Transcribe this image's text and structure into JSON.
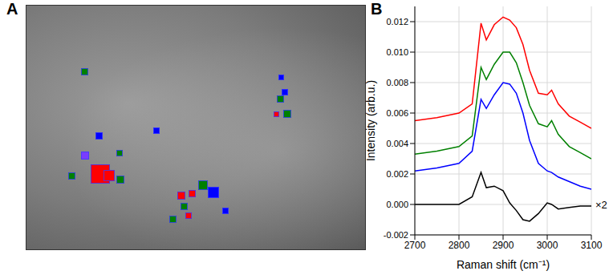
{
  "panel_labels": [
    "A",
    "B"
  ],
  "chart_data": {
    "type": "line",
    "xlabel": "Raman shift (cm⁻¹)",
    "ylabel": "Intensity (arb.u.)",
    "annotations": [
      {
        "text": "×2",
        "x": 3100,
        "y": 0
      }
    ],
    "x": [
      2700,
      2750,
      2800,
      2830,
      2850,
      2862,
      2880,
      2900,
      2915,
      2930,
      2945,
      2960,
      2980,
      3000,
      3010,
      3025,
      3050,
      3075,
      3100
    ],
    "series": [
      {
        "color": "red",
        "values": [
          0.0055,
          0.0057,
          0.006,
          0.0066,
          0.0119,
          0.0108,
          0.0118,
          0.0123,
          0.0121,
          0.0116,
          0.0105,
          0.0088,
          0.0073,
          0.0072,
          0.0075,
          0.0066,
          0.0058,
          0.0054,
          0.005
        ]
      },
      {
        "color": "green",
        "values": [
          0.0033,
          0.0035,
          0.0038,
          0.0045,
          0.009,
          0.0082,
          0.0092,
          0.01,
          0.01,
          0.0093,
          0.008,
          0.0065,
          0.0053,
          0.0051,
          0.0055,
          0.0046,
          0.0038,
          0.0034,
          0.003
        ]
      },
      {
        "color": "blue",
        "values": [
          0.0022,
          0.0024,
          0.0027,
          0.0035,
          0.0069,
          0.0063,
          0.0072,
          0.008,
          0.0079,
          0.0073,
          0.006,
          0.0042,
          0.0027,
          0.0022,
          0.0021,
          0.0018,
          0.0015,
          0.0012,
          0.001
        ]
      },
      {
        "color": "black",
        "values": [
          0,
          0,
          0,
          0.0005,
          0.0021,
          0.0011,
          0.0012,
          0.0009,
          0.0001,
          -0.0004,
          -0.001,
          -0.0011,
          -0.0006,
          0.0001,
          0,
          -0.0003,
          -0.0002,
          -0.0001,
          -0.0001
        ]
      }
    ],
    "xlim": [
      2700,
      3100
    ],
    "xticks": [
      2700,
      2800,
      2900,
      3000,
      3100
    ],
    "ylim": [
      -0.002,
      0.013
    ],
    "yticks": [
      -0.002,
      {
        "value": 0,
        "label": "0.000"
      },
      0.002,
      0.004,
      0.006,
      0.008,
      {
        "value": 0.01,
        "label": "0.010"
      },
      0.012
    ],
    "grid": true
  }
}
